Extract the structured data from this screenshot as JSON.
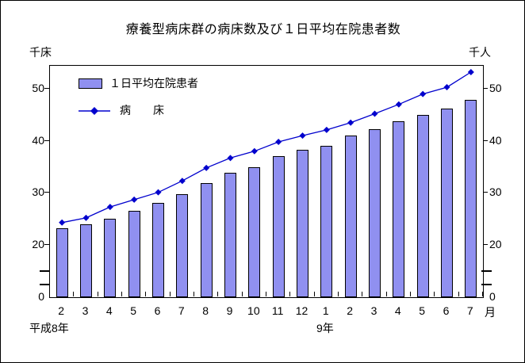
{
  "title": "療養型病床群の病床数及び１日平均在院患者数",
  "left_axis_unit": "千床",
  "right_axis_unit": "千人",
  "legend": {
    "bars_label": "１日平均在院患者",
    "line_label": "病　　床"
  },
  "x_axis": {
    "month_suffix": "月",
    "year_labels": [
      {
        "text": "平成8年"
      },
      {
        "text": "9年"
      }
    ]
  },
  "colors": {
    "bar_fill": "#9090F0",
    "bar_border": "#000000",
    "line": "#0000CD",
    "marker": "#0000CD"
  },
  "chart_data": {
    "type": "bar",
    "combo": "bar+line",
    "title": "療養型病床群の病床数及び１日平均在院患者数",
    "categories": [
      "2",
      "3",
      "4",
      "5",
      "6",
      "7",
      "8",
      "9",
      "10",
      "11",
      "12",
      "1",
      "2",
      "3",
      "4",
      "5",
      "6",
      "7"
    ],
    "x_year_groups": [
      {
        "label": "平成8年",
        "months": [
          "2",
          "3",
          "4",
          "5",
          "6",
          "7",
          "8",
          "9",
          "10",
          "11",
          "12"
        ]
      },
      {
        "label": "9年",
        "months": [
          "1",
          "2",
          "3",
          "4",
          "5",
          "6",
          "7"
        ]
      }
    ],
    "series": [
      {
        "name": "１日平均在院患者",
        "type": "bar",
        "unit": "千人",
        "values": [
          23.2,
          23.9,
          25.0,
          26.5,
          28.0,
          29.7,
          31.9,
          33.8,
          35.0,
          37.0,
          38.2,
          39.1,
          41.0,
          42.2,
          43.8,
          45.0,
          46.2,
          47.9
        ]
      },
      {
        "name": "病床",
        "type": "line",
        "unit": "千床",
        "values": [
          24.3,
          25.2,
          27.3,
          28.7,
          30.1,
          32.3,
          34.8,
          36.7,
          38.0,
          39.8,
          41.0,
          42.1,
          43.5,
          45.2,
          47.0,
          49.0,
          50.3,
          53.2
        ]
      }
    ],
    "y_ticks": [
      50,
      40,
      30,
      20,
      0
    ],
    "y_axis_break": {
      "between": [
        0,
        20
      ]
    },
    "ylabel_left": "千床",
    "ylabel_right": "千人",
    "grid": false,
    "legend_position": "top-left-inside"
  }
}
